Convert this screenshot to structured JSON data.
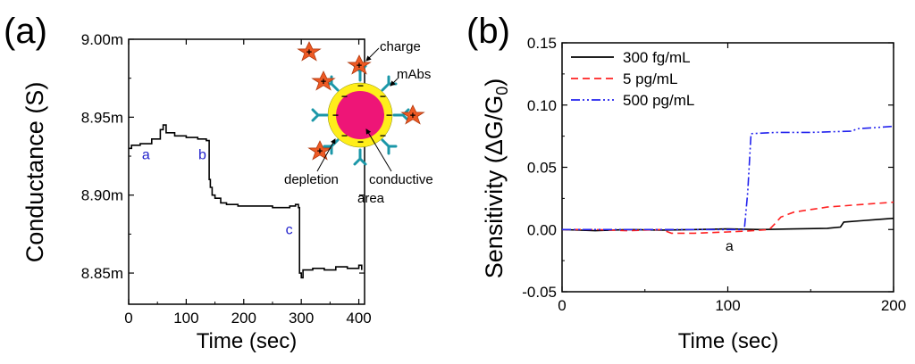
{
  "chart_data": [
    {
      "panel_label": "(a)",
      "type": "line",
      "xlabel": "Time (sec)",
      "ylabel": "Conductance (S)",
      "xlim": [
        0,
        410
      ],
      "ylim": [
        0.00883,
        0.009
      ],
      "xticks": [
        0,
        100,
        200,
        300,
        400
      ],
      "xtick_labels": [
        "0",
        "100",
        "200",
        "300",
        "400"
      ],
      "yticks": [
        0.00885,
        0.0089,
        0.00895,
        0.009
      ],
      "ytick_labels": [
        "8.85m",
        "8.90m",
        "8.95m",
        "9.00m"
      ],
      "grid": false,
      "series": [
        {
          "color": "#000000",
          "x": [
            0,
            5,
            20,
            40,
            55,
            60,
            65,
            80,
            100,
            120,
            135,
            140,
            142,
            145,
            150,
            160,
            170,
            190,
            220,
            250,
            280,
            290,
            295,
            297,
            300,
            303,
            320,
            340,
            360,
            380,
            400,
            405
          ],
          "y": [
            0.00893,
            0.008932,
            0.008933,
            0.008936,
            0.008942,
            0.008945,
            0.00894,
            0.008938,
            0.008937,
            0.008936,
            0.008935,
            0.00891,
            0.008905,
            0.0089,
            0.008898,
            0.008895,
            0.008894,
            0.008893,
            0.008893,
            0.008892,
            0.008893,
            0.008894,
            0.008892,
            0.00885,
            0.008847,
            0.008852,
            0.008853,
            0.008852,
            0.008854,
            0.008853,
            0.008855,
            0.008852
          ]
        }
      ],
      "annotations": [
        {
          "text": "a",
          "x": 30,
          "y": 0.008923,
          "color": "#2222cc"
        },
        {
          "text": "b",
          "x": 128,
          "y": 0.008923,
          "color": "#2222cc"
        },
        {
          "text": "c",
          "x": 279,
          "y": 0.008875,
          "color": "#2222cc"
        }
      ],
      "inset_labels": {
        "charge": "charge",
        "mabs": "mAbs",
        "depletion": "depletion",
        "area": "area",
        "conductive": "conductive"
      }
    },
    {
      "panel_label": "(b)",
      "type": "line",
      "xlabel": "Time (sec)",
      "ylabel": "Sensitivity (ΔG/G",
      "ylabel_sub": "0",
      "ylabel_end": ")",
      "xlim": [
        0,
        200
      ],
      "ylim": [
        -0.05,
        0.15
      ],
      "xticks": [
        0,
        100,
        200
      ],
      "xtick_labels": [
        "0",
        "100",
        "200"
      ],
      "yticks": [
        -0.05,
        0,
        0.05,
        0.1,
        0.15
      ],
      "ytick_labels": [
        "-0.05",
        "0.00",
        "0.05",
        "0.10",
        "0.15"
      ],
      "grid": false,
      "legend_position": "top-left",
      "series": [
        {
          "name": "300 fg/mL",
          "color": "#000000",
          "dash": "",
          "x": [
            0,
            20,
            40,
            60,
            80,
            100,
            120,
            140,
            160,
            168,
            170,
            180,
            190,
            200
          ],
          "y": [
            0,
            -0.001,
            0,
            -0.0005,
            0,
            0.0005,
            0,
            0.0005,
            0.001,
            0.002,
            0.006,
            0.007,
            0.008,
            0.009
          ]
        },
        {
          "name": "5 pg/mL",
          "color": "#ff2222",
          "dash": "8,5",
          "x": [
            0,
            20,
            40,
            60,
            66,
            80,
            100,
            115,
            125,
            128,
            132,
            140,
            160,
            180,
            200
          ],
          "y": [
            0,
            0,
            -0.001,
            0,
            -0.003,
            -0.003,
            -0.002,
            -0.001,
            0,
            0.004,
            0.01,
            0.014,
            0.018,
            0.02,
            0.022
          ]
        },
        {
          "name": "500 pg/mL",
          "color": "#2222ee",
          "dash": "10,3,2,3,2,3",
          "x": [
            0,
            40,
            80,
            100,
            110,
            112,
            114,
            130,
            150,
            175,
            178,
            190,
            200
          ],
          "y": [
            0,
            0,
            0,
            0,
            0,
            0.03,
            0.077,
            0.078,
            0.078,
            0.079,
            0.081,
            0.082,
            0.083
          ]
        }
      ],
      "annotations": [
        {
          "text": "a",
          "x": 101,
          "y": -0.017,
          "color": "#000000"
        }
      ]
    }
  ]
}
